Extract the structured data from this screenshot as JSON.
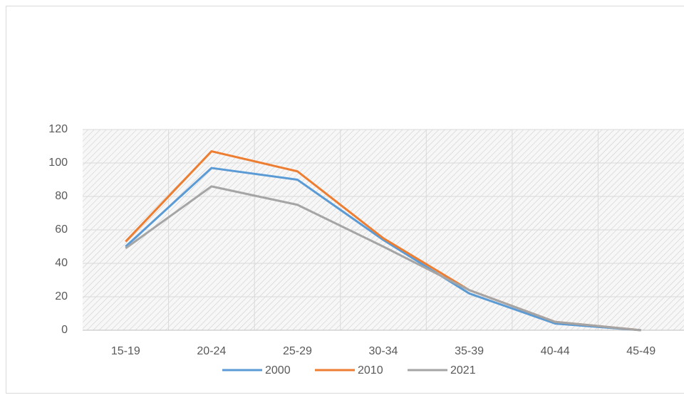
{
  "chart_data": {
    "type": "line",
    "categories": [
      "15-19",
      "20-24",
      "25-29",
      "30-34",
      "35-39",
      "40-44",
      "45-49"
    ],
    "series": [
      {
        "name": "2000",
        "color": "#5b9bd5",
        "values": [
          50,
          97,
          90,
          54,
          22,
          4,
          0
        ]
      },
      {
        "name": "2010",
        "color": "#ed7d31",
        "values": [
          53,
          107,
          95,
          55,
          24,
          5,
          0
        ]
      },
      {
        "name": "2021",
        "color": "#a5a5a5",
        "values": [
          49,
          86,
          75,
          50,
          24,
          5,
          0
        ]
      }
    ],
    "ylim": [
      0,
      120
    ],
    "yticks": [
      0,
      20,
      40,
      60,
      80,
      100,
      120
    ],
    "grid": true,
    "legend": "bottom"
  }
}
